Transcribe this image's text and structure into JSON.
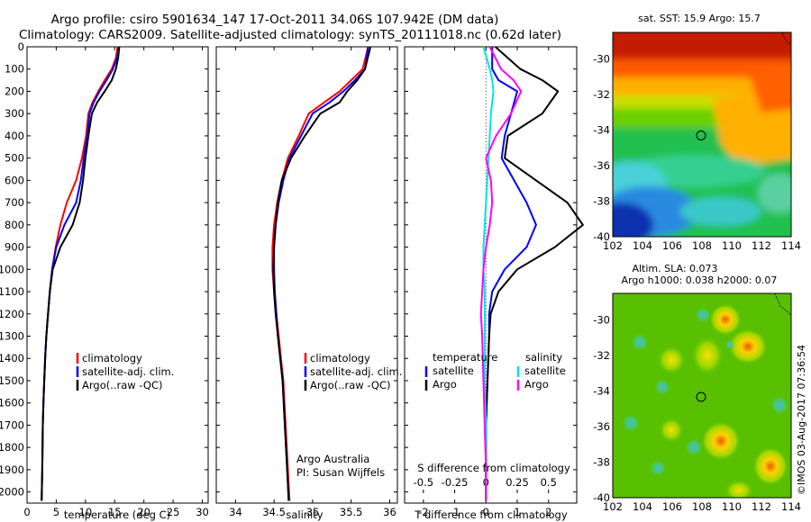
{
  "header": {
    "title_line1": "Argo profile: csiro 5901634_147 17-Oct-2011 34.06S 107.942E (DM data)",
    "title_line2": "Climatology: CARS2009. Satellite-adjusted climatology: synTS_20111018.nc (0.62d later)"
  },
  "colors": {
    "climatology": "#ff0000",
    "satellite": "#0000ff",
    "argo": "#000000",
    "sat_salinity": "#00e5e5",
    "argo_salinity": "#ff00ff"
  },
  "panels": {
    "temperature": {
      "xlabel": "temperature (deg C)",
      "legend": [
        "climatology",
        "satellite-adj. clim.",
        "Argo(..raw -QC)"
      ]
    },
    "salinity": {
      "xlabel": "salinity",
      "legend": [
        "climatology",
        "satellite-adj. clim.",
        "Argo(..raw -QC)"
      ],
      "note_line1": "Argo Australia",
      "note_line2": "PI: Susan Wijffels"
    },
    "difference": {
      "xlabel_bottom": "T difference from climatology",
      "xlabel_top": "S difference from climatology",
      "legend_temperature_title": "temperature",
      "legend_salinity_title": "salinity",
      "legend_satellite": "satellite",
      "legend_argo": "Argo"
    },
    "sst_map": {
      "title": "sat. SST: 15.9 Argo: 15.7"
    },
    "sla_map": {
      "title_line1": "Altim. SLA: 0.073",
      "title_line2": "Argo h1000: 0.038 h2000: 0.07"
    }
  },
  "watermark": "©IMOS 03-Aug-2017 07:36:54",
  "chart_data": [
    {
      "type": "line",
      "name": "temperature profile",
      "xlabel": "temperature (deg C)",
      "ylabel": "",
      "xlim": [
        0,
        31
      ],
      "ylim": [
        2050,
        0
      ],
      "xticks": [
        0,
        5,
        10,
        15,
        20,
        25,
        30
      ],
      "yticks": [
        0,
        100,
        200,
        300,
        400,
        500,
        600,
        700,
        800,
        900,
        1000,
        1100,
        1200,
        1300,
        1400,
        1500,
        1600,
        1700,
        1800,
        1900,
        2000
      ],
      "legend": "lower-right",
      "series": [
        {
          "name": "climatology",
          "color": "#ff0000",
          "x": [
            15.5,
            15.2,
            14.5,
            13.3,
            12.2,
            11.2,
            10.5,
            10.1,
            9.4,
            8.4,
            6.8,
            5.7,
            4.9,
            4.3,
            3.9,
            3.6,
            3.3,
            3.1,
            2.95,
            2.8,
            2.7,
            2.6,
            2.5
          ],
          "depth": [
            0,
            50,
            100,
            150,
            200,
            250,
            300,
            400,
            500,
            600,
            700,
            800,
            900,
            1000,
            1100,
            1200,
            1300,
            1400,
            1500,
            1600,
            1700,
            1900,
            2040
          ]
        },
        {
          "name": "satellite-adj. clim.",
          "color": "#0000ff",
          "x": [
            15.7,
            15.4,
            14.7,
            13.6,
            12.4,
            11.4,
            10.7,
            10.3,
            9.7,
            9.2,
            8.4,
            6.4,
            5.0,
            4.3,
            3.9,
            3.6,
            3.3,
            3.1,
            2.95,
            2.8,
            2.7,
            2.6,
            2.5
          ],
          "depth": [
            0,
            50,
            100,
            150,
            200,
            250,
            300,
            400,
            500,
            600,
            700,
            800,
            900,
            1000,
            1100,
            1200,
            1300,
            1400,
            1500,
            1600,
            1700,
            1900,
            2040
          ]
        },
        {
          "name": "Argo(..raw -QC)",
          "color": "#000000",
          "x": [
            15.8,
            15.6,
            15.2,
            14.5,
            13.3,
            12.0,
            11.1,
            10.5,
            10.0,
            9.6,
            9.0,
            7.8,
            5.7,
            4.4,
            3.9,
            3.6,
            3.3,
            3.1,
            2.95,
            2.8,
            2.7,
            2.6,
            2.5
          ],
          "depth": [
            0,
            50,
            100,
            150,
            200,
            250,
            300,
            400,
            500,
            600,
            700,
            800,
            900,
            1000,
            1100,
            1200,
            1300,
            1400,
            1500,
            1600,
            1700,
            1900,
            2040
          ]
        }
      ]
    },
    {
      "type": "line",
      "name": "salinity profile",
      "xlabel": "salinity",
      "ylabel": "",
      "xlim": [
        33.75,
        36.1
      ],
      "ylim": [
        2050,
        0
      ],
      "xticks": [
        34,
        34.5,
        35,
        35.5,
        36
      ],
      "legend": "lower-right",
      "series": [
        {
          "name": "climatology",
          "color": "#ff0000",
          "x": [
            35.72,
            35.65,
            35.5,
            35.35,
            35.15,
            34.95,
            34.82,
            34.68,
            34.6,
            34.54,
            34.5,
            34.48,
            34.48,
            34.5,
            34.53,
            34.56,
            34.59,
            34.62,
            34.65,
            34.68,
            34.7
          ],
          "depth": [
            0,
            100,
            150,
            200,
            250,
            300,
            400,
            500,
            600,
            700,
            800,
            900,
            1000,
            1100,
            1200,
            1300,
            1400,
            1500,
            1700,
            1900,
            2040
          ]
        },
        {
          "name": "satellite-adj. clim.",
          "color": "#0000ff",
          "x": [
            35.72,
            35.68,
            35.55,
            35.4,
            35.22,
            35.0,
            34.85,
            34.7,
            34.62,
            34.56,
            34.52,
            34.5,
            34.5,
            34.51,
            34.53,
            34.55,
            34.58,
            34.61,
            34.64,
            34.67,
            34.69
          ],
          "depth": [
            0,
            100,
            150,
            200,
            250,
            300,
            400,
            500,
            600,
            700,
            800,
            900,
            1000,
            1100,
            1200,
            1300,
            1400,
            1500,
            1700,
            1900,
            2040
          ]
        },
        {
          "name": "Argo(..raw -QC)",
          "color": "#000000",
          "x": [
            35.75,
            35.68,
            35.58,
            35.45,
            35.35,
            35.1,
            34.9,
            34.72,
            34.6,
            34.55,
            34.52,
            34.5,
            34.49,
            34.5,
            34.52,
            34.55,
            34.58,
            34.61,
            34.64,
            34.67,
            34.69
          ],
          "depth": [
            0,
            100,
            150,
            200,
            250,
            300,
            400,
            500,
            600,
            700,
            800,
            900,
            1000,
            1100,
            1200,
            1300,
            1400,
            1500,
            1700,
            1900,
            2040
          ]
        }
      ]
    },
    {
      "type": "line",
      "name": "difference from climatology",
      "xlabel": "T difference from climatology",
      "xlabel_top": "S difference from climatology",
      "xlim": [
        -2.6,
        2.9
      ],
      "xlim_top": [
        -0.65,
        0.725
      ],
      "ylim": [
        2050,
        0
      ],
      "xticks": [
        -2,
        -1,
        0,
        1,
        2
      ],
      "xticks_top": [
        -0.5,
        -0.25,
        0,
        0.25,
        0.5
      ],
      "legend": "lower-center",
      "series": [
        {
          "name": "satellite",
          "group": "temperature",
          "color": "#0000ff",
          "x": [
            0.2,
            0.2,
            0.4,
            1.0,
            0.8,
            0.6,
            0.5,
            0.9,
            1.3,
            1.6,
            1.3,
            0.6,
            0.2,
            0.1,
            0.1,
            0.05,
            0,
            0,
            0
          ],
          "depth": [
            0,
            100,
            150,
            200,
            300,
            400,
            500,
            600,
            700,
            800,
            900,
            1000,
            1100,
            1200,
            1300,
            1500,
            1700,
            1900,
            2040
          ]
        },
        {
          "name": "Argo",
          "group": "temperature",
          "color": "#000000",
          "x": [
            0.3,
            1.1,
            1.8,
            2.3,
            1.8,
            0.7,
            0.6,
            1.6,
            2.6,
            3.1,
            2.2,
            1.0,
            0.4,
            0.15,
            0.1,
            0.05,
            0,
            0,
            0
          ],
          "depth": [
            0,
            100,
            150,
            200,
            300,
            400,
            500,
            600,
            700,
            800,
            900,
            1000,
            1100,
            1200,
            1300,
            1500,
            1700,
            1900,
            2040
          ]
        },
        {
          "name": "satellite",
          "group": "salinity",
          "color": "#00e5e5",
          "x": [
            -0.02,
            0.03,
            0.05,
            0.06,
            0.04,
            0.03,
            0.02,
            0.01,
            0.0,
            -0.01,
            -0.02,
            -0.02,
            -0.01,
            -0.01,
            -0.01,
            -0.01,
            0,
            0,
            0
          ],
          "depth": [
            0,
            100,
            150,
            200,
            300,
            400,
            500,
            600,
            700,
            800,
            900,
            1000,
            1100,
            1200,
            1300,
            1500,
            1700,
            1900,
            2040
          ]
        },
        {
          "name": "Argo",
          "group": "salinity",
          "color": "#ff00ff",
          "x": [
            0.03,
            0.12,
            0.22,
            0.28,
            0.2,
            0.08,
            0.0,
            0.04,
            0.05,
            0.03,
            0.0,
            -0.02,
            -0.03,
            -0.04,
            -0.03,
            -0.02,
            -0.01,
            0,
            0
          ],
          "depth": [
            0,
            100,
            150,
            200,
            300,
            400,
            500,
            600,
            700,
            800,
            900,
            1000,
            1100,
            1200,
            1300,
            1500,
            1700,
            1900,
            2040
          ]
        }
      ]
    },
    {
      "type": "heatmap",
      "name": "sat. SST map",
      "title": "sat. SST: 15.9 Argo: 15.7",
      "xlim": [
        102,
        114
      ],
      "ylim": [
        -40,
        -28.5
      ],
      "xticks": [
        102,
        104,
        106,
        108,
        110,
        112,
        114
      ],
      "yticks": [
        -30,
        -32,
        -34,
        -36,
        -38,
        -40
      ],
      "marker": {
        "x": 107.942,
        "y": -34.06
      }
    },
    {
      "type": "heatmap",
      "name": "Altim. SLA map",
      "title": "Altim. SLA: 0.073 / Argo h1000: 0.038 h2000: 0.07",
      "xlim": [
        102,
        114
      ],
      "ylim": [
        -40,
        -28.5
      ],
      "xticks": [
        102,
        104,
        106,
        108,
        110,
        112,
        114
      ],
      "yticks": [
        -30,
        -32,
        -34,
        -36,
        -38,
        -40
      ],
      "marker": {
        "x": 107.942,
        "y": -34.06
      }
    }
  ]
}
